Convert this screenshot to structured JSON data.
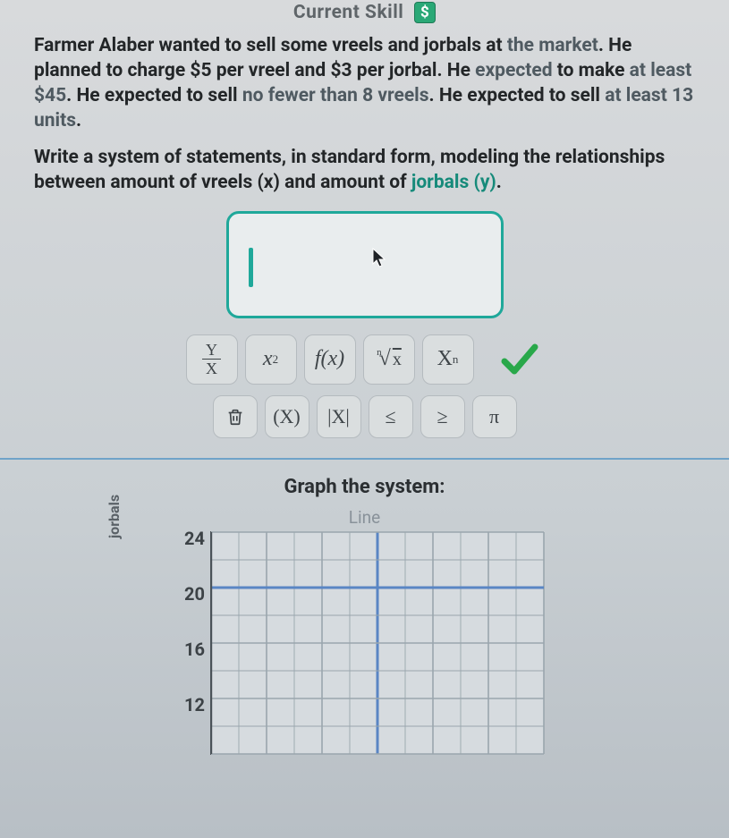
{
  "header": {
    "title": "Current Skill",
    "badge": "$"
  },
  "problem": {
    "text_parts": [
      "Farmer Alaber wanted to sell some vreels and jorbals at ",
      "the market",
      ". He planned to charge $5 per vreel and $3 per jorbal. He ",
      "expected",
      " to make ",
      "at least $45",
      ". He expected to sell ",
      "no fewer than",
      " ",
      "8 vreels",
      ". He expected to sell ",
      "at least 13 units",
      "."
    ]
  },
  "instruction": {
    "lead": "Write a system of statements, in standard form, modeling the relationships between amount of vreels (x) and amount of ",
    "highlight": "jorbals (y)",
    "tail": "."
  },
  "toolbar": {
    "row1": {
      "frac": {
        "num": "Y",
        "den": "X"
      },
      "power": "x²",
      "func": "f(x)",
      "nthroot_index": "n",
      "nthroot_rad": "x",
      "subscript": "Xₙ"
    },
    "row2": {
      "parens": "(X)",
      "abs": "|X|",
      "le": "≤",
      "ge": "≥",
      "pi": "π"
    }
  },
  "graph": {
    "title": "Graph the system:",
    "line_label": "Line",
    "y_axis_label": "jorbals",
    "y_ticks": [
      "24",
      "20",
      "16",
      "12"
    ],
    "grid": {
      "cols": 12,
      "rows": 8,
      "cell": 31,
      "major_every": 2,
      "highlight_col": 6,
      "highlight_row": 2,
      "grid_color": "#9aa6ad",
      "highlight_color": "#5a86c4",
      "background": "#d6dbdf"
    }
  },
  "colors": {
    "teal": "#1fa89a",
    "check": "#29a84a"
  }
}
